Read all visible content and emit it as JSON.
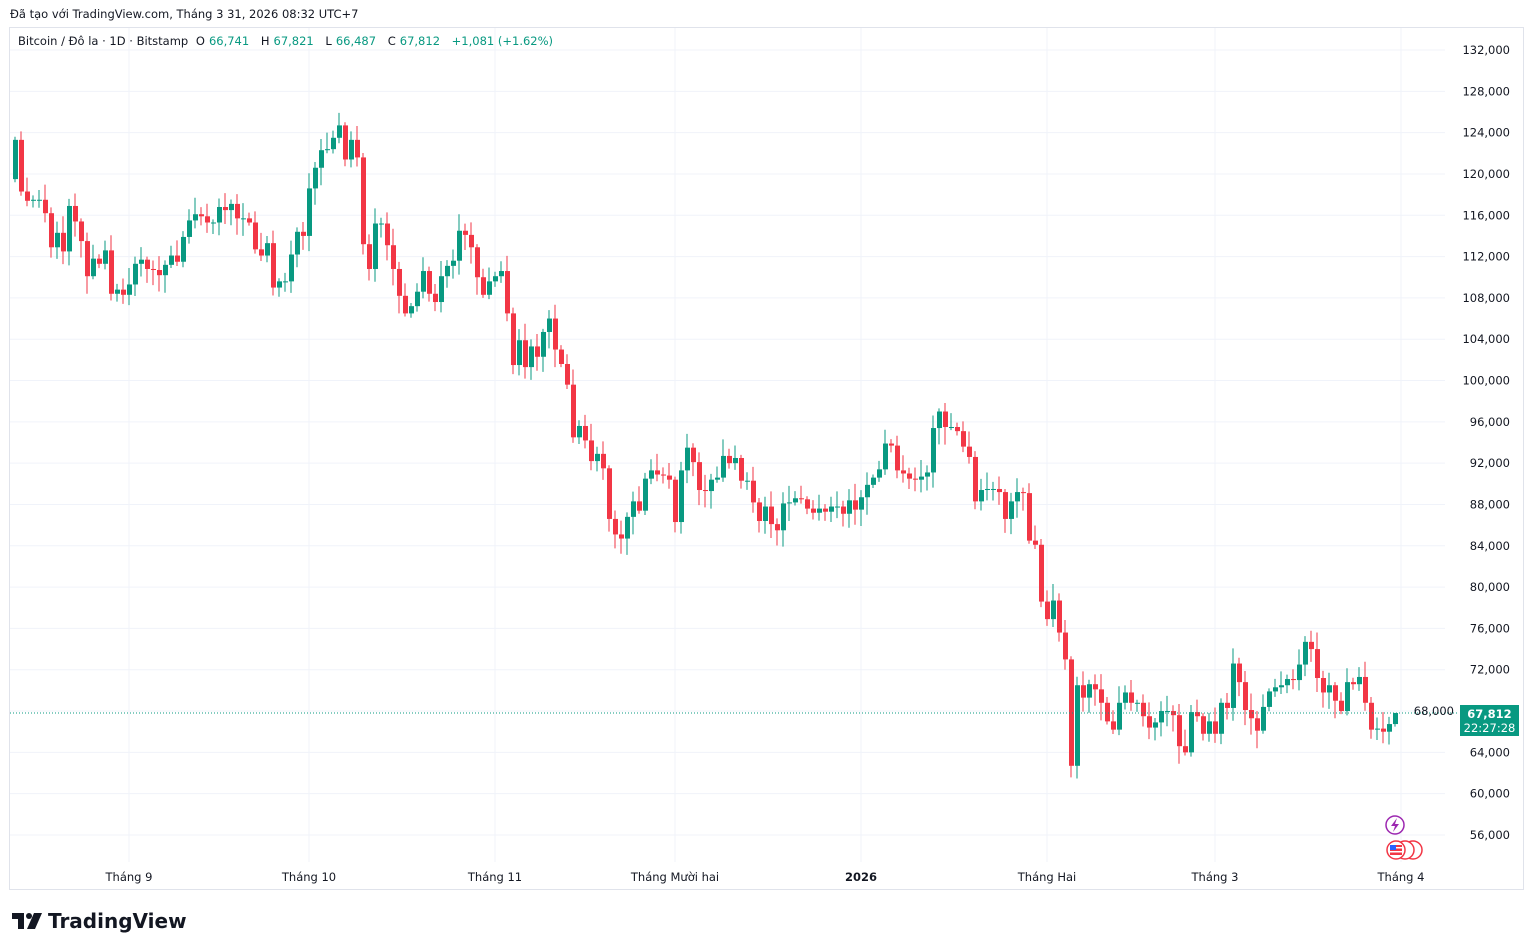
{
  "caption": "Đã tạo với TradingView.com, Tháng 3 31, 2026 08:32 UTC+7",
  "legend": {
    "symbol": "Bitcoin / Đô la · 1D · Bitstamp",
    "open_label": "O",
    "open": "66,741",
    "high_label": "H",
    "high": "67,821",
    "low_label": "L",
    "low": "66,487",
    "close_label": "C",
    "close": "67,812",
    "change": "+1,081 (+1.62%)"
  },
  "last_price": {
    "price": "67,812",
    "countdown": "22:27:28"
  },
  "logo": "TradingView",
  "colors": {
    "up": "#089981",
    "down": "#f23645",
    "grid": "#f0f3fa",
    "event_purple": "#9c27b0",
    "event_red": "#f23645"
  },
  "chart_data": {
    "type": "candlestick",
    "title": "Bitcoin / Đô la · 1D · Bitstamp",
    "units": "USD thousands",
    "first_date": "2025-08-13",
    "last_date": "2026-03-31",
    "ylim": [
      52,
      134
    ],
    "y_ticks": [
      "132,000",
      "128,000",
      "124,000",
      "120,000",
      "116,000",
      "112,000",
      "108,000",
      "104,000",
      "100,000",
      "96,000",
      "92,000",
      "88,000",
      "84,000",
      "80,000",
      "76,000",
      "72,000",
      "68,000",
      "64,000",
      "60,000",
      "56,000"
    ],
    "y_tick_values": [
      132,
      128,
      124,
      120,
      116,
      112,
      108,
      104,
      100,
      96,
      92,
      88,
      84,
      80,
      76,
      72,
      68,
      64,
      60,
      56
    ],
    "x_ticks": [
      {
        "label": "Tháng 9",
        "index": 19
      },
      {
        "label": "Tháng 10",
        "index": 49
      },
      {
        "label": "Tháng 11",
        "index": 80
      },
      {
        "label": "Tháng Mười hai",
        "index": 110
      },
      {
        "label": "2026",
        "index": 141,
        "bold": true
      },
      {
        "label": "Tháng Hai",
        "index": 172
      },
      {
        "label": "Tháng 3",
        "index": 200
      },
      {
        "label": "Tháng 4",
        "index": 231
      }
    ],
    "first_open": 119.5,
    "last_high": 67.821,
    "last_low": 66.487,
    "close": [
      123.3,
      118.3,
      117.4,
      117.5,
      117.5,
      116.2,
      112.9,
      114.3,
      112.5,
      116.9,
      115.4,
      113.5,
      110.1,
      111.8,
      111.3,
      112.6,
      108.4,
      108.8,
      108.3,
      109.3,
      111.3,
      111.7,
      110.8,
      110.7,
      110.2,
      111.2,
      112.1,
      111.5,
      113.9,
      115.5,
      116.1,
      115.9,
      115.3,
      115.3,
      116.8,
      116.5,
      117.1,
      115.7,
      115.7,
      115.3,
      112.7,
      112.1,
      113.3,
      109.0,
      109.6,
      109.6,
      112.2,
      114.4,
      114.0,
      118.6,
      120.6,
      122.3,
      122.4,
      123.5,
      124.7,
      121.4,
      123.3,
      121.6,
      113.2,
      110.8,
      115.2,
      115.2,
      113.1,
      110.8,
      108.2,
      106.5,
      107.2,
      108.6,
      110.6,
      108.4,
      107.6,
      110.1,
      111.1,
      111.6,
      114.5,
      114.1,
      112.9,
      110.0,
      108.3,
      109.6,
      110.1,
      110.6,
      106.5,
      101.5,
      103.9,
      101.3,
      103.3,
      102.3,
      104.7,
      106.0,
      103.0,
      101.6,
      99.6,
      94.5,
      95.6,
      94.2,
      92.2,
      92.9,
      91.5,
      86.6,
      85.1,
      84.7,
      86.8,
      88.3,
      87.4,
      90.5,
      91.3,
      90.9,
      90.8,
      90.4,
      86.3,
      91.3,
      93.5,
      92.1,
      89.4,
      89.3,
      90.4,
      90.6,
      92.7,
      92.0,
      92.5,
      90.3,
      90.3,
      88.2,
      86.4,
      87.8,
      86.1,
      85.5,
      88.1,
      88.2,
      88.6,
      88.5,
      87.6,
      87.2,
      87.6,
      87.3,
      87.8,
      87.8,
      87.1,
      88.4,
      87.5,
      88.7,
      89.9,
      90.6,
      91.4,
      93.9,
      93.7,
      91.3,
      91.0,
      90.5,
      90.4,
      90.7,
      91.1,
      95.4,
      97.0,
      95.5,
      95.5,
      95.1,
      93.6,
      92.6,
      88.3,
      89.4,
      89.5,
      89.5,
      89.2,
      86.6,
      88.3,
      89.2,
      89.1,
      84.5,
      84.1,
      78.6,
      76.9,
      78.7,
      75.6,
      73.0,
      62.7,
      70.5,
      69.3,
      70.6,
      70.1,
      68.8,
      67.0,
      66.2,
      68.8,
      69.8,
      68.8,
      68.8,
      67.5,
      66.4,
      66.9,
      68.0,
      68.0,
      67.6,
      64.6,
      64.0,
      67.9,
      67.5,
      65.8,
      67.0,
      65.8,
      68.8,
      68.3,
      72.6,
      70.8,
      68.1,
      67.3,
      66.1,
      68.4,
      69.9,
      70.3,
      70.5,
      71.1,
      71.0,
      72.5,
      74.7,
      74.0,
      71.2,
      69.8,
      70.5,
      69.0,
      68.0,
      70.8,
      70.6,
      71.3,
      68.8,
      66.2,
      66.3,
      66.0,
      66.741,
      67.812
    ]
  }
}
